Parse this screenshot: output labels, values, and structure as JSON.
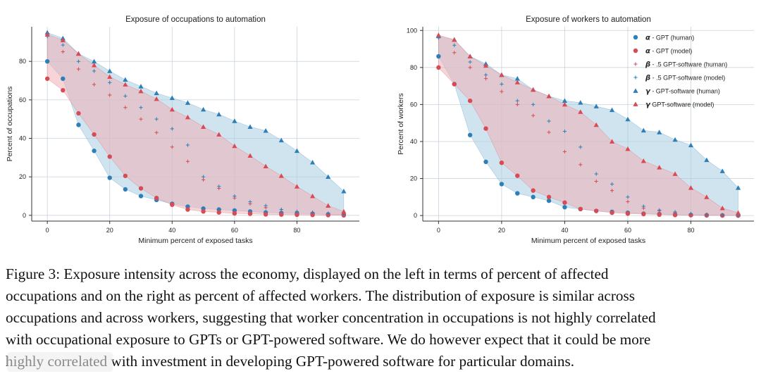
{
  "colors": {
    "blue": "#2e7fb6",
    "red": "#d84b55",
    "blue_fill": "#a9cde3",
    "red_fill": "#efb0b6",
    "grid": "#c9d3dc"
  },
  "chart_data": [
    {
      "type": "scatter",
      "title": "Exposure of occupations to automation",
      "xlabel": "Minimum percent of exposed tasks",
      "ylabel": "Percent of occupations",
      "xlim": [
        -5,
        100
      ],
      "ylim": [
        -3,
        98
      ],
      "xticks": [
        0,
        20,
        40,
        60,
        80
      ],
      "xtick_labels": [
        "0",
        "20",
        "40",
        "60",
        "80"
      ],
      "yticks": [
        0,
        20,
        40,
        60,
        80
      ],
      "ytick_labels": [
        "0",
        "20",
        "40",
        "60",
        "80"
      ],
      "grid": true,
      "shaded_bands": [
        {
          "between": [
            "alpha_human",
            "gamma_human"
          ],
          "color": "blue"
        },
        {
          "between": [
            "alpha_model",
            "gamma_model"
          ],
          "color": "red"
        }
      ],
      "series": [
        {
          "key": "alpha_human",
          "marker": "circle",
          "color": "blue",
          "x": [
            0,
            5,
            10,
            15,
            20,
            25,
            30,
            35,
            40,
            45,
            50,
            55,
            60,
            65,
            70,
            75,
            80,
            85,
            90,
            95
          ],
          "y": [
            80,
            71,
            47,
            33.5,
            19.5,
            13.5,
            10,
            8,
            6,
            4.5,
            3.5,
            3,
            2.5,
            2,
            1.5,
            1.2,
            1,
            0.8,
            0.5,
            0.3
          ]
        },
        {
          "key": "alpha_model",
          "marker": "circle",
          "color": "red",
          "x": [
            0,
            5,
            10,
            15,
            20,
            25,
            30,
            35,
            40,
            45,
            50,
            55,
            60,
            65,
            70,
            75,
            80,
            85,
            90,
            95
          ],
          "y": [
            71,
            65,
            53,
            42,
            30.5,
            20.5,
            14,
            9,
            5.5,
            3,
            2,
            1.5,
            1,
            0.8,
            0.5,
            0.4,
            0.3,
            0.2,
            0.1,
            0
          ]
        },
        {
          "key": "beta_human",
          "marker": "plus",
          "color": "red",
          "x": [
            0,
            5,
            10,
            15,
            20,
            25,
            30,
            35,
            40,
            45,
            50,
            55,
            60,
            65,
            70,
            75,
            80,
            85,
            90,
            95
          ],
          "y": [
            93,
            85,
            76,
            68,
            62.5,
            56,
            50,
            43,
            35.5,
            28,
            18.5,
            14,
            9,
            6,
            4,
            3,
            2,
            1.5,
            1,
            0.5
          ]
        },
        {
          "key": "beta_model",
          "marker": "plus",
          "color": "blue",
          "x": [
            0,
            5,
            10,
            15,
            20,
            25,
            30,
            35,
            40,
            45,
            50,
            55,
            60,
            65,
            70,
            75,
            80,
            85,
            90,
            95
          ],
          "y": [
            93,
            88.5,
            80,
            75,
            69,
            62,
            56,
            50,
            45,
            36.5,
            20,
            15,
            10,
            7,
            5,
            3,
            2,
            1.5,
            1,
            0.5
          ]
        },
        {
          "key": "gamma_human",
          "marker": "triangle",
          "color": "blue",
          "x": [
            0,
            5,
            10,
            15,
            20,
            25,
            30,
            35,
            40,
            45,
            50,
            55,
            60,
            65,
            70,
            75,
            80,
            85,
            90,
            95
          ],
          "y": [
            95,
            92,
            84,
            80,
            75,
            70.5,
            67,
            63.5,
            61,
            58.5,
            55,
            52.5,
            49,
            46,
            44,
            39,
            33.5,
            27.5,
            20,
            12.5
          ]
        },
        {
          "key": "gamma_model",
          "marker": "triangle",
          "color": "red",
          "x": [
            0,
            5,
            10,
            15,
            20,
            25,
            30,
            35,
            40,
            45,
            50,
            55,
            60,
            65,
            70,
            75,
            80,
            85,
            90,
            95
          ],
          "y": [
            94,
            91,
            84,
            78,
            72,
            68,
            64.5,
            60.5,
            55,
            51,
            46,
            42,
            36,
            31,
            25.5,
            20.5,
            15,
            10,
            5,
            2
          ]
        }
      ]
    },
    {
      "type": "scatter",
      "title": "Exposure of workers to automation",
      "xlabel": "Minimum percent of exposed tasks",
      "ylabel": "Percent of workers",
      "xlim": [
        -5,
        100
      ],
      "ylim": [
        -3,
        102
      ],
      "xticks": [
        0,
        20,
        40,
        60,
        80
      ],
      "xtick_labels": [
        "0",
        "20",
        "40",
        "60",
        "80"
      ],
      "yticks": [
        0,
        20,
        40,
        60,
        80,
        100
      ],
      "ytick_labels": [
        "0",
        "20",
        "40",
        "60",
        "80",
        "100"
      ],
      "grid": true,
      "legend_position": "top-right",
      "legend": [
        {
          "greek": "α",
          "label": " - GPT (human)",
          "marker": "circle",
          "color": "blue"
        },
        {
          "greek": "α",
          "label": " - GPT (model)",
          "marker": "circle",
          "color": "red"
        },
        {
          "greek": "β",
          "label": " - .5 GPT-software (human)",
          "marker": "plus",
          "color": "red"
        },
        {
          "greek": "β",
          "label": " - .5 GPT-software (model)",
          "marker": "plus",
          "color": "blue"
        },
        {
          "greek": "γ",
          "label": " - GPT-software (human)",
          "marker": "triangle",
          "color": "blue"
        },
        {
          "greek": "γ",
          "label": " GPT-software (model)",
          "marker": "triangle",
          "color": "red"
        }
      ],
      "shaded_bands": [
        {
          "between": [
            "alpha_human",
            "gamma_human"
          ],
          "color": "blue"
        },
        {
          "between": [
            "alpha_model",
            "gamma_model"
          ],
          "color": "red"
        }
      ],
      "series": [
        {
          "key": "alpha_human",
          "marker": "circle",
          "color": "blue",
          "x": [
            0,
            5,
            10,
            15,
            20,
            25,
            30,
            35,
            40,
            45,
            50,
            55,
            60,
            65,
            70,
            75,
            80,
            85,
            90,
            95
          ],
          "y": [
            86,
            71,
            43.5,
            29,
            17,
            12,
            10,
            8,
            4.5,
            3.5,
            2.5,
            2,
            1.5,
            1,
            0.8,
            0.5,
            0.3,
            0.2,
            0.1,
            0
          ]
        },
        {
          "key": "alpha_model",
          "marker": "circle",
          "color": "red",
          "x": [
            0,
            5,
            10,
            15,
            20,
            25,
            30,
            35,
            40,
            45,
            50,
            55,
            60,
            65,
            70,
            75,
            80,
            85,
            90,
            95
          ],
          "y": [
            80,
            71,
            62,
            47,
            28.5,
            21.5,
            13.5,
            10,
            7,
            3.5,
            2.5,
            1.5,
            1,
            0.8,
            0.5,
            0.3,
            0.2,
            0.1,
            0,
            0
          ]
        },
        {
          "key": "beta_human",
          "marker": "plus",
          "color": "red",
          "x": [
            0,
            5,
            10,
            15,
            20,
            25,
            30,
            35,
            40,
            45,
            50,
            55,
            60,
            65,
            70,
            75,
            80,
            85,
            90,
            95
          ],
          "y": [
            96,
            88,
            80,
            74,
            67,
            60,
            54,
            45,
            34.5,
            27.5,
            18.5,
            13.5,
            7.5,
            4,
            2.5,
            1.5,
            1,
            0.5,
            0.3,
            0.1
          ]
        },
        {
          "key": "beta_model",
          "marker": "plus",
          "color": "blue",
          "x": [
            0,
            5,
            10,
            15,
            20,
            25,
            30,
            35,
            40,
            45,
            50,
            55,
            60,
            65,
            70,
            75,
            80,
            85,
            90,
            95
          ],
          "y": [
            96,
            92,
            83,
            76,
            71,
            62,
            60,
            51,
            45.5,
            37,
            22.5,
            17,
            10,
            5,
            3,
            2,
            1,
            0.5,
            0.3,
            0.1
          ]
        },
        {
          "key": "gamma_human",
          "marker": "triangle",
          "color": "blue",
          "x": [
            0,
            5,
            10,
            15,
            20,
            25,
            30,
            35,
            40,
            45,
            50,
            55,
            60,
            65,
            70,
            75,
            80,
            85,
            90,
            95
          ],
          "y": [
            97,
            95,
            86,
            82,
            76,
            74,
            68,
            64.5,
            62,
            61,
            59,
            57,
            52,
            46,
            45,
            41,
            38,
            30,
            24,
            15
          ]
        },
        {
          "key": "gamma_model",
          "marker": "triangle",
          "color": "red",
          "x": [
            0,
            5,
            10,
            15,
            20,
            25,
            30,
            35,
            40,
            45,
            50,
            55,
            60,
            65,
            70,
            75,
            80,
            85,
            90,
            95
          ],
          "y": [
            97.5,
            95,
            86,
            81,
            76,
            72,
            68,
            64.5,
            60,
            56,
            49,
            40,
            36,
            29.5,
            26,
            22.5,
            15,
            10,
            4,
            1.5
          ]
        }
      ]
    }
  ],
  "caption": {
    "line1": "Figure 3:  Exposure intensity across the economy, displayed on the left in terms of percent of affected",
    "line2": "occupations and on the right as percent of affected workers. The distribution of exposure is similar across",
    "line3": "occupations and across workers, suggesting that worker concentration in occupations is not highly correlated",
    "line4": "with occupational exposure to GPTs or GPT-powered software.  We do however expect that it could be more",
    "line5": "highly correlated with investment in developing GPT-powered software for particular domains."
  }
}
